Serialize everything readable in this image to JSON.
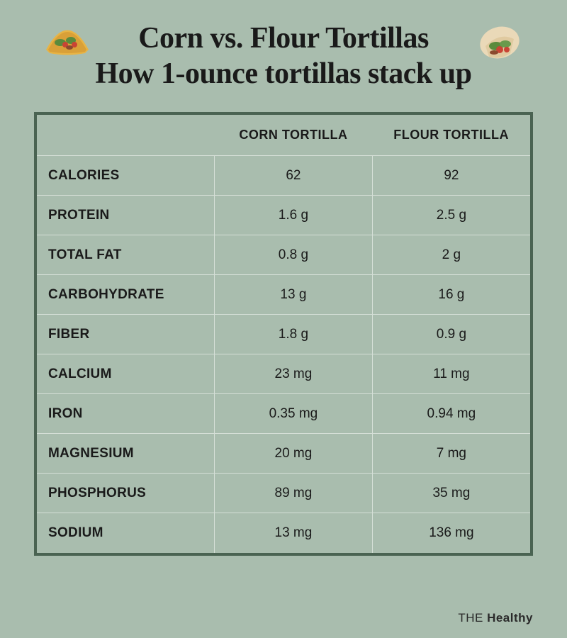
{
  "colors": {
    "background": "#a9bdae",
    "table_border": "#4a6352",
    "cell_border": "#d5dfd7",
    "text": "#1a1a1a"
  },
  "header": {
    "line1": "Corn vs. Flour Tortillas",
    "line2": "How 1-ounce tortillas stack up",
    "title_fontsize": 42
  },
  "icons": {
    "left": "taco-icon",
    "right": "wrap-icon"
  },
  "table": {
    "columns": [
      "",
      "CORN TORTILLA",
      "FLOUR TORTILLA"
    ],
    "header_fontsize": 18,
    "cell_fontsize": 19,
    "rows": [
      {
        "label": "CALORIES",
        "corn": "62",
        "flour": "92"
      },
      {
        "label": "PROTEIN",
        "corn": "1.6 g",
        "flour": "2.5 g"
      },
      {
        "label": "TOTAL FAT",
        "corn": "0.8 g",
        "flour": "2 g"
      },
      {
        "label": "CARBOHYDRATE",
        "corn": "13 g",
        "flour": "16 g"
      },
      {
        "label": "FIBER",
        "corn": "1.8 g",
        "flour": "0.9 g"
      },
      {
        "label": "CALCIUM",
        "corn": "23 mg",
        "flour": "11 mg"
      },
      {
        "label": "IRON",
        "corn": "0.35 mg",
        "flour": "0.94 mg"
      },
      {
        "label": "MAGNESIUM",
        "corn": "20 mg",
        "flour": "7 mg"
      },
      {
        "label": "PHOSPHORUS",
        "corn": "89 mg",
        "flour": "35 mg"
      },
      {
        "label": "SODIUM",
        "corn": "13 mg",
        "flour": "136 mg"
      }
    ]
  },
  "brand": {
    "the": "THE ",
    "name": "Healthy"
  }
}
